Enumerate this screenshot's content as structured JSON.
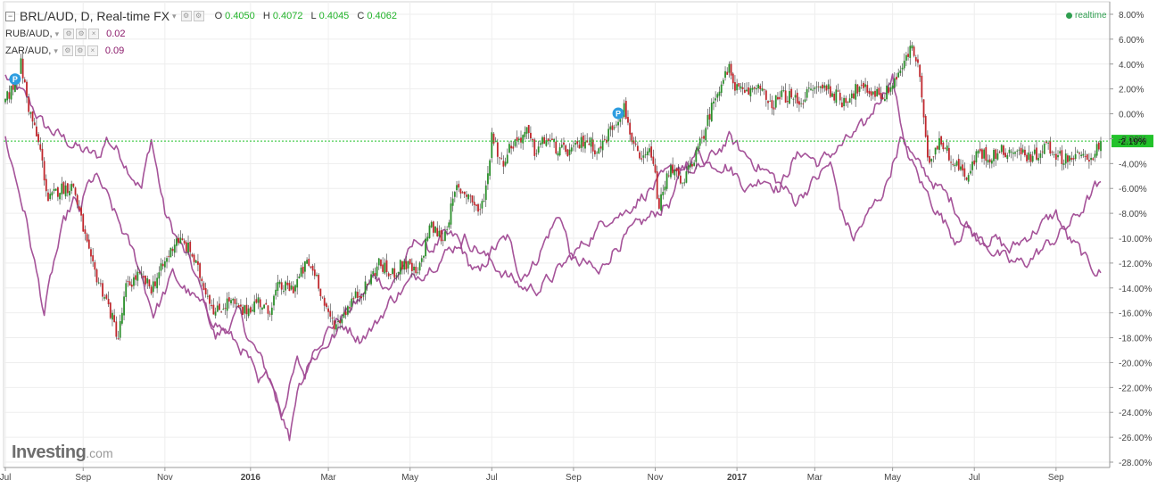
{
  "header": {
    "main_symbol": "BRL/AUD, D, Real-time FX",
    "ohlc": [
      {
        "key": "O",
        "value": "0.4050"
      },
      {
        "key": "H",
        "value": "0.4072"
      },
      {
        "key": "L",
        "value": "0.4045"
      },
      {
        "key": "C",
        "value": "0.4062"
      }
    ],
    "compare": [
      {
        "symbol": "RUB/AUD,",
        "value": "0.02",
        "color": "#8b1a6b"
      },
      {
        "symbol": "ZAR/AUD,",
        "value": "0.09",
        "color": "#8b1a6b"
      }
    ],
    "realtime_label": "realtime",
    "realtime_color": "#2e9e4f"
  },
  "brand": {
    "name": "Investing",
    "suffix": ".com"
  },
  "colors": {
    "up": "#2b8f2b",
    "down": "#c0272d",
    "compare": "#a04a93",
    "last_line": "#22c22a",
    "badge_bg": "#22c22a",
    "marker": "#2d9de0"
  },
  "markers": [
    {
      "label": "P",
      "date_index": 5
    },
    {
      "label": "P",
      "date_index": 315
    }
  ],
  "chart_data": {
    "type": "line",
    "title": "BRL/AUD, D, Real-time FX",
    "xlabel": "",
    "ylabel": "",
    "ylim": [
      -28,
      8
    ],
    "y_ticks": [
      "8.00%",
      "6.00%",
      "4.00%",
      "2.00%",
      "0.00%",
      "-2.00%",
      "-4.00%",
      "-6.00%",
      "-8.00%",
      "-10.00%",
      "-12.00%",
      "-14.00%",
      "-16.00%",
      "-18.00%",
      "-20.00%",
      "-22.00%",
      "-24.00%",
      "-26.00%",
      "-28.00%"
    ],
    "y_tick_values": [
      8,
      6,
      4,
      2,
      0,
      -2,
      -4,
      -6,
      -8,
      -10,
      -12,
      -14,
      -16,
      -18,
      -20,
      -22,
      -24,
      -26,
      -28
    ],
    "x_ticks": [
      {
        "label": "Jul",
        "t": 0,
        "bold": false
      },
      {
        "label": "Sep",
        "t": 40,
        "bold": false
      },
      {
        "label": "Nov",
        "t": 82,
        "bold": false
      },
      {
        "label": "2016",
        "t": 126,
        "bold": true
      },
      {
        "label": "Mar",
        "t": 166,
        "bold": false
      },
      {
        "label": "May",
        "t": 208,
        "bold": false
      },
      {
        "label": "Jul",
        "t": 250,
        "bold": false
      },
      {
        "label": "Sep",
        "t": 292,
        "bold": false
      },
      {
        "label": "Nov",
        "t": 334,
        "bold": false
      },
      {
        "label": "2017",
        "t": 376,
        "bold": true
      },
      {
        "label": "Mar",
        "t": 416,
        "bold": false
      },
      {
        "label": "May",
        "t": 456,
        "bold": false
      },
      {
        "label": "Jul",
        "t": 498,
        "bold": false
      },
      {
        "label": "Sep",
        "t": 540,
        "bold": false
      }
    ],
    "total_days": 564,
    "last_value_label": "-2.19%",
    "last_value": -2.19,
    "grid": true,
    "legend_position": "top-left",
    "series": [
      {
        "name": "BRL/AUD",
        "style": "candles",
        "key_t": [
          0,
          5,
          8,
          12,
          18,
          22,
          28,
          35,
          44,
          52,
          58,
          62,
          68,
          75,
          82,
          88,
          95,
          100,
          108,
          115,
          122,
          130,
          135,
          140,
          148,
          155,
          160,
          165,
          170,
          178,
          185,
          192,
          198,
          205,
          212,
          218,
          225,
          232,
          238,
          244,
          248,
          250,
          255,
          260,
          268,
          272,
          278,
          285,
          292,
          298,
          305,
          312,
          318,
          322,
          326,
          332,
          336,
          342,
          348,
          352,
          356,
          360,
          366,
          372,
          376,
          380,
          388,
          392,
          400,
          408,
          415,
          422,
          430,
          438,
          445,
          452,
          458,
          462,
          466,
          470,
          474,
          480,
          488,
          495,
          500,
          505,
          512,
          520,
          528,
          535,
          542,
          548,
          555,
          560,
          563
        ],
        "key_v": [
          1.0,
          2.5,
          4.0,
          0.5,
          -3.0,
          -7.0,
          -6.0,
          -5.8,
          -12,
          -15,
          -18,
          -14,
          -13,
          -14,
          -12,
          -10,
          -11,
          -13,
          -16,
          -15,
          -16,
          -15,
          -16,
          -14,
          -14,
          -12,
          -13,
          -16,
          -17,
          -15,
          -14,
          -12,
          -13,
          -12,
          -13,
          -9,
          -10,
          -6,
          -6.5,
          -8,
          -5,
          -1.5,
          -4,
          -2.5,
          -1.5,
          -3,
          -2,
          -3,
          -3,
          -2,
          -3,
          -1,
          0.5,
          -2,
          -4,
          -3,
          -7.5,
          -4,
          -6,
          -4,
          -3,
          -1,
          2,
          3.5,
          2,
          1.5,
          2.5,
          0.5,
          1.5,
          1,
          2,
          2.2,
          1,
          2,
          1.8,
          1.5,
          3,
          4,
          5.5,
          3,
          -4,
          -2,
          -4,
          -5,
          -3,
          -3.5,
          -3,
          -3,
          -3.5,
          -2.5,
          -3.5,
          -3.5,
          -3.5,
          -3.2,
          -2.19
        ]
      },
      {
        "name": "RUB/AUD",
        "style": "line",
        "key_t": [
          0,
          12,
          20,
          30,
          40,
          48,
          52,
          58,
          62,
          70,
          75,
          82,
          88,
          95,
          100,
          108,
          115,
          120,
          125,
          132,
          138,
          142,
          146,
          150,
          154,
          158,
          162,
          168,
          175,
          182,
          190,
          198,
          205,
          212,
          218,
          225,
          232,
          238,
          244,
          250,
          258,
          265,
          272,
          278,
          285,
          292,
          298,
          305,
          312,
          318,
          326,
          334,
          342,
          350,
          356,
          362,
          370,
          376,
          382,
          390,
          398,
          404,
          410,
          418,
          426,
          434,
          442,
          448,
          452,
          456,
          458,
          462,
          468,
          474,
          480,
          486,
          494,
          500,
          508,
          516,
          524,
          532,
          540,
          546,
          552,
          556,
          560,
          563
        ],
        "key_v": [
          3,
          1,
          -1,
          -2,
          -3,
          -3.5,
          -2,
          -3,
          -4,
          -6,
          -2,
          -8,
          -10,
          -12,
          -14,
          -18,
          -17,
          -16,
          -18,
          -20,
          -22,
          -24,
          -22,
          -20,
          -21,
          -19,
          -18,
          -17,
          -16,
          -15,
          -13,
          -14,
          -12,
          -10,
          -11,
          -10,
          -10,
          -12,
          -13,
          -11,
          -10,
          -13,
          -12,
          -10,
          -8,
          -12,
          -12,
          -13,
          -11,
          -10,
          -9,
          -8,
          -7,
          -4,
          -3,
          -4,
          -4,
          -5,
          -6,
          -5,
          -6,
          -4,
          -3,
          -4,
          -3,
          -2,
          -1,
          1,
          2,
          3,
          1,
          -2,
          -4,
          -5,
          -6,
          -7,
          -9,
          -10,
          -10,
          -11,
          -10,
          -9,
          -8,
          -10,
          -11,
          -12,
          -12.5,
          -12.7
        ]
      },
      {
        "name": "ZAR/AUD",
        "style": "line",
        "key_t": [
          0,
          5,
          10,
          15,
          20,
          25,
          30,
          35,
          38,
          42,
          46,
          50,
          56,
          62,
          68,
          72,
          76,
          80,
          86,
          92,
          98,
          104,
          110,
          116,
          122,
          126,
          130,
          136,
          142,
          146,
          150,
          156,
          162,
          168,
          175,
          182,
          190,
          198,
          205,
          212,
          220,
          228,
          236,
          244,
          250,
          258,
          266,
          274,
          282,
          288,
          294,
          300,
          306,
          312,
          318,
          324,
          332,
          340,
          348,
          354,
          360,
          366,
          372,
          378,
          386,
          394,
          400,
          406,
          412,
          418,
          424,
          430,
          436,
          440,
          444,
          448,
          452,
          456,
          460,
          466,
          472,
          480,
          488,
          494,
          500,
          508,
          516,
          524,
          532,
          540,
          546,
          552,
          556,
          560,
          563
        ],
        "key_v": [
          -2,
          -5,
          -8,
          -12,
          -16,
          -12,
          -9,
          -7,
          -8,
          -6,
          -5,
          -6,
          -8,
          -10,
          -12,
          -14,
          -16,
          -15,
          -13,
          -14,
          -15,
          -16,
          -17,
          -18,
          -19,
          -20,
          -22,
          -21,
          -24,
          -26,
          -22,
          -20,
          -19,
          -18,
          -17,
          -18,
          -17,
          -15,
          -14,
          -13,
          -12,
          -11,
          -10,
          -11,
          -12,
          -13,
          -14,
          -14,
          -13,
          -12,
          -11,
          -10,
          -9,
          -8,
          -8,
          -7,
          -6,
          -5,
          -4,
          -5,
          -4,
          -3,
          -2,
          -3,
          -4,
          -5,
          -6,
          -7,
          -6,
          -5,
          -4,
          -8,
          -10,
          -9,
          -8,
          -7,
          -6,
          -4,
          -2,
          -4,
          -6,
          -8,
          -10,
          -9,
          -10,
          -11,
          -12,
          -12,
          -11,
          -10,
          -9,
          -8,
          -7,
          -6,
          -6
        ]
      }
    ]
  }
}
